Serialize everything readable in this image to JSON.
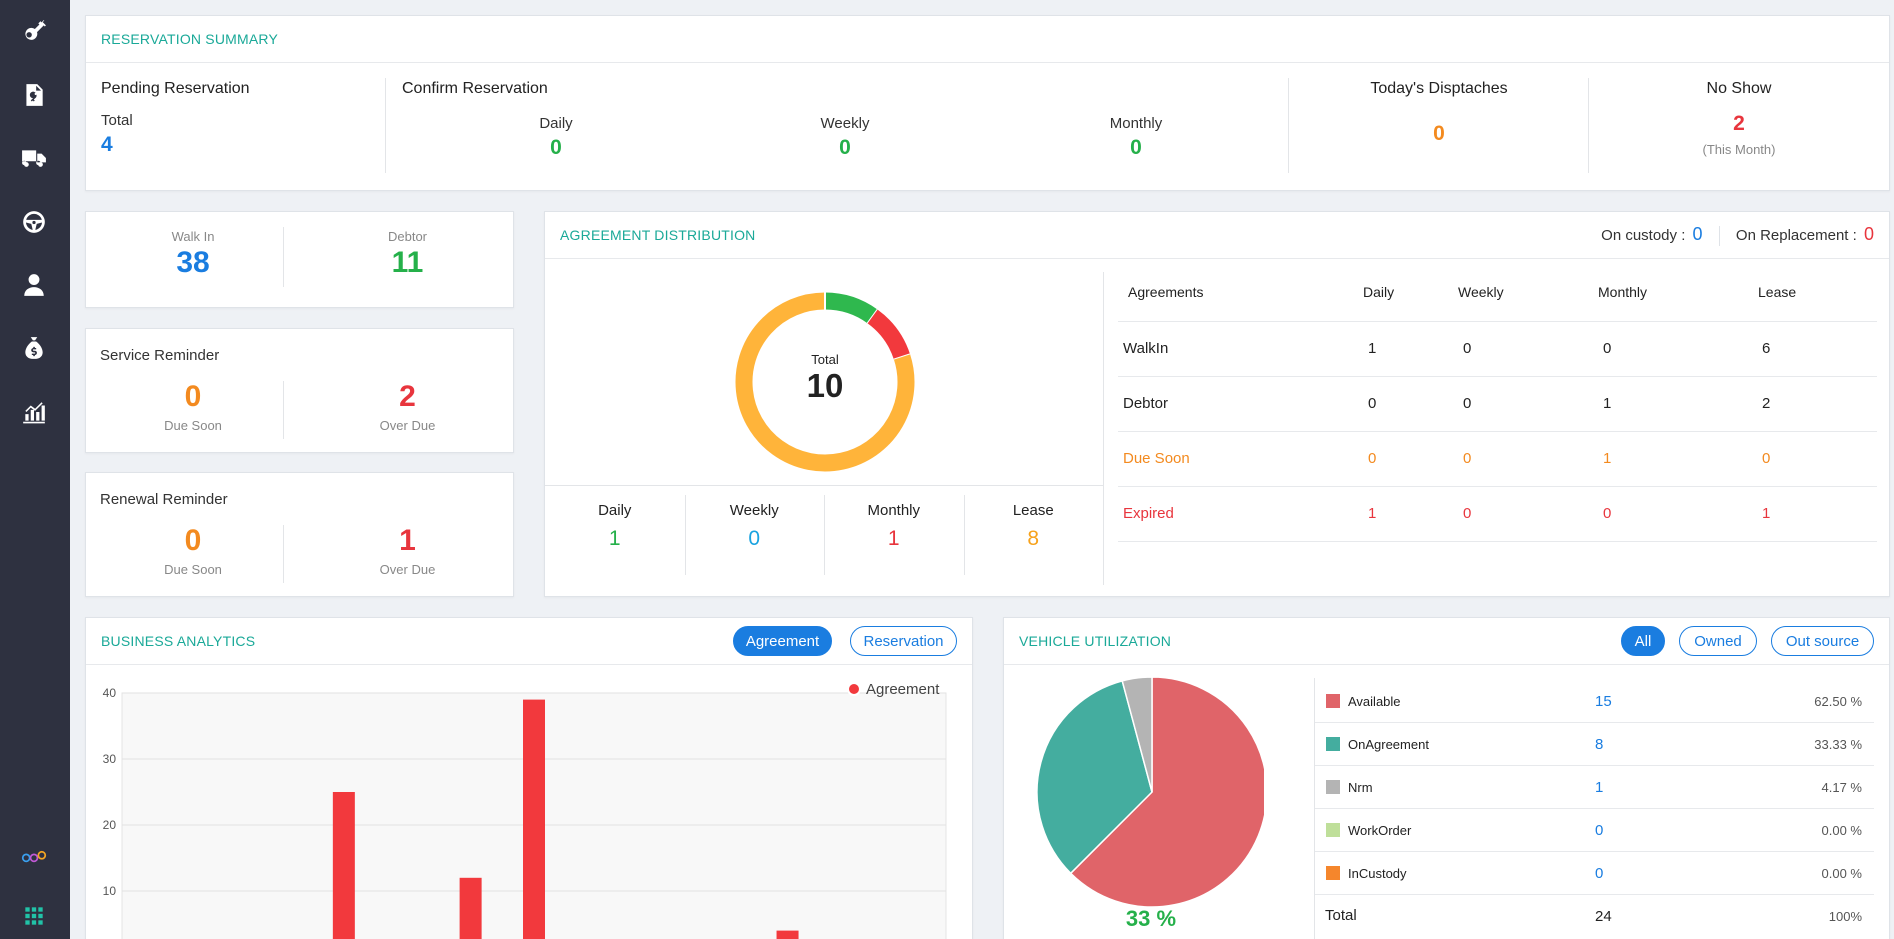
{
  "sidebar": {
    "icons": [
      "key-icon",
      "document-key-icon",
      "truck-icon",
      "steering-wheel-icon",
      "driver-icon",
      "money-bag-icon",
      "analytics-icon"
    ],
    "bottom_icons": [
      "logo-rings-icon",
      "apps-grid-icon"
    ]
  },
  "reservation_summary": {
    "title": "RESERVATION SUMMARY",
    "pending": {
      "label": "Pending Reservation",
      "total_label": "Total",
      "total": "4"
    },
    "confirm": {
      "label": "Confirm Reservation",
      "daily_label": "Daily",
      "daily": "0",
      "weekly_label": "Weekly",
      "weekly": "0",
      "monthly_label": "Monthly",
      "monthly": "0"
    },
    "dispatches": {
      "label": "Today's Disptaches",
      "value": "0"
    },
    "no_show": {
      "label": "No Show",
      "value": "2",
      "note": "(This Month)"
    }
  },
  "walkin_debtor": {
    "walkin_label": "Walk In",
    "walkin": "38",
    "debtor_label": "Debtor",
    "debtor": "11"
  },
  "service_reminder": {
    "title": "Service Reminder",
    "due_soon": "0",
    "due_soon_label": "Due Soon",
    "over_due": "2",
    "over_due_label": "Over Due"
  },
  "renewal_reminder": {
    "title": "Renewal Reminder",
    "due_soon": "0",
    "due_soon_label": "Due Soon",
    "over_due": "1",
    "over_due_label": "Over Due"
  },
  "agreement_distribution": {
    "title": "AGREEMENT DISTRIBUTION",
    "on_custody_label": "On custody :",
    "on_custody": "0",
    "on_replacement_label": "On Replacement :",
    "on_replacement": "0",
    "donut": {
      "center_label": "Total",
      "center_value": "10",
      "segments": [
        {
          "name": "Daily",
          "value": 1,
          "color": "#2fb84e"
        },
        {
          "name": "Monthly",
          "value": 1,
          "color": "#f2393d"
        },
        {
          "name": "Lease",
          "value": 8,
          "color": "#ffb43a"
        }
      ]
    },
    "totals": [
      {
        "label": "Daily",
        "value": "1",
        "color": "#25b04a"
      },
      {
        "label": "Weekly",
        "value": "0",
        "color": "#1aa3e0"
      },
      {
        "label": "Monthly",
        "value": "1",
        "color": "#e8353d"
      },
      {
        "label": "Lease",
        "value": "8",
        "color": "#f7a21b"
      }
    ],
    "table": {
      "headers": [
        "Agreements",
        "Daily",
        "Weekly",
        "Monthly",
        "Lease"
      ],
      "rows": [
        {
          "label": "WalkIn",
          "cells": [
            "1",
            "0",
            "0",
            "6"
          ],
          "color": "#222222"
        },
        {
          "label": "Debtor",
          "cells": [
            "0",
            "0",
            "1",
            "2"
          ],
          "color": "#222222"
        },
        {
          "label": "Due Soon",
          "cells": [
            "0",
            "0",
            "1",
            "0"
          ],
          "color": "#f38a1f"
        },
        {
          "label": "Expired",
          "cells": [
            "1",
            "0",
            "0",
            "1"
          ],
          "color": "#e8353d"
        }
      ]
    }
  },
  "business_analytics": {
    "title": "BUSINESS ANALYTICS",
    "tabs": [
      "Agreement",
      "Reservation"
    ],
    "active_tab": "Agreement"
  },
  "chart_data": {
    "type": "bar",
    "series": [
      {
        "name": "Agreement",
        "color": "#f2393d",
        "values": [
          null,
          null,
          null,
          25,
          null,
          12,
          39,
          null,
          null,
          null,
          4,
          null,
          null
        ]
      }
    ],
    "ylim": [
      0,
      40
    ],
    "yticks": [
      "40",
      "30",
      "20",
      "10"
    ],
    "legend": "top-right",
    "grid": true
  },
  "vehicle_utilization": {
    "title": "VEHICLE UTILIZATION",
    "tabs": [
      "All",
      "Owned",
      "Out source"
    ],
    "active_tab": "All",
    "pie_percent": "33 %",
    "items": [
      {
        "name": "Available",
        "count": "15",
        "percent": "62.50 %",
        "color": "#e06469",
        "value": 15
      },
      {
        "name": "OnAgreement",
        "count": "8",
        "percent": "33.33 %",
        "color": "#44ad9f",
        "value": 8
      },
      {
        "name": "Nrm",
        "count": "1",
        "percent": "4.17 %",
        "color": "#b4b4b4",
        "value": 1
      },
      {
        "name": "WorkOrder",
        "count": "0",
        "percent": "0.00 %",
        "color": "#bfdf9a",
        "value": 0
      },
      {
        "name": "InCustody",
        "count": "0",
        "percent": "0.00 %",
        "color": "#f5862c",
        "value": 0
      }
    ],
    "total_label": "Total",
    "total": "24",
    "total_percent": "100%"
  }
}
